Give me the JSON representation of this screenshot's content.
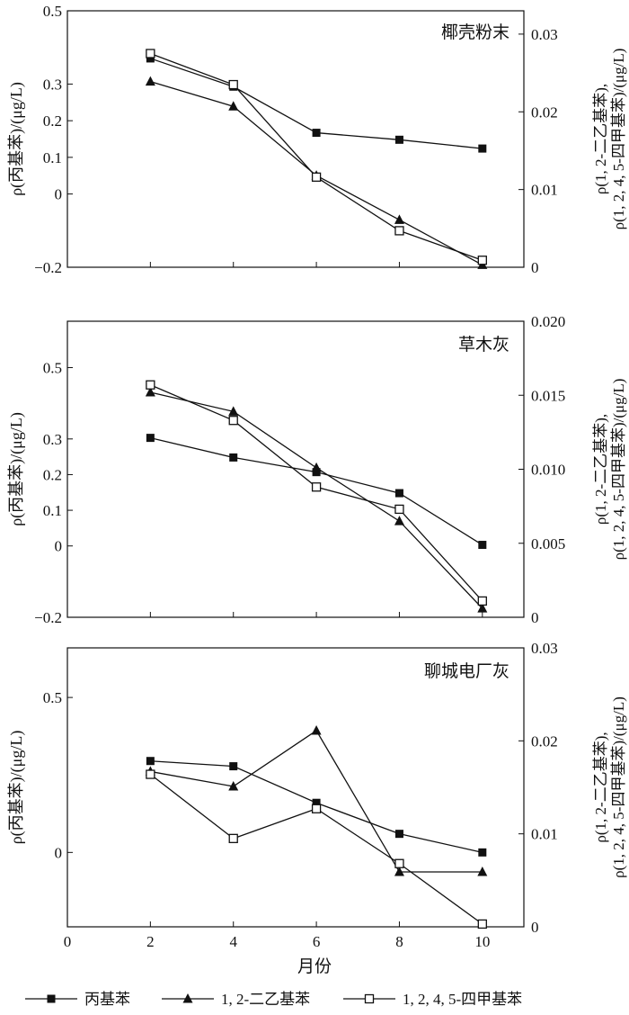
{
  "x_axis": {
    "label": "月份",
    "ticks": [
      0,
      2,
      4,
      6,
      8,
      10
    ],
    "xlim": [
      0,
      11
    ]
  },
  "legend": {
    "position": "bottom",
    "items": [
      {
        "name": "丙基苯",
        "marker": "filled-square"
      },
      {
        "name": "1, 2-二乙基苯",
        "marker": "filled-triangle"
      },
      {
        "name": "1, 2, 4, 5-四甲基苯",
        "marker": "open-square"
      }
    ]
  },
  "chart_data": [
    {
      "type": "line",
      "title": "椰壳粉末",
      "x": [
        2,
        4,
        6,
        8,
        10
      ],
      "ylabel_left": "ρ(丙基苯)/(μg/L)",
      "ylabel_right": [
        "ρ(1, 2-二乙基苯),",
        "ρ(1, 2, 4, 5-四甲基苯)/(μg/L)"
      ],
      "ylim_left": [
        -0.2,
        0.5
      ],
      "yticks_left": [
        -0.2,
        0,
        0.1,
        0.2,
        0.3,
        0.5
      ],
      "yticklabels_left": [
        "−0.2",
        "0",
        "0.1",
        "0.2",
        "0.3",
        "0.5"
      ],
      "ylim_right": [
        0,
        0.033
      ],
      "yticks_right": [
        0,
        0.01,
        0.02,
        0.03
      ],
      "yticklabels_right": [
        "0",
        "0.01",
        "0.02",
        "0.03"
      ],
      "series": [
        {
          "name": "丙基苯",
          "axis": "left",
          "marker": "filled-square",
          "values": [
            0.37,
            0.293,
            0.167,
            0.148,
            0.124
          ]
        },
        {
          "name": "1, 2-二乙基苯",
          "axis": "right",
          "marker": "filled-triangle",
          "values": [
            0.0239,
            0.0207,
            0.0118,
            0.0061,
            0.0003
          ]
        },
        {
          "name": "1, 2, 4, 5-四甲基苯",
          "axis": "right",
          "marker": "open-square",
          "values": [
            0.0275,
            0.0235,
            0.0116,
            0.0047,
            0.0009
          ]
        }
      ]
    },
    {
      "type": "line",
      "title": "草木灰",
      "x": [
        2,
        4,
        6,
        8,
        10
      ],
      "ylabel_left": "ρ(丙基苯)/(μg/L)",
      "ylabel_right": [
        "ρ(1, 2-二乙基苯),",
        "ρ(1, 2, 4, 5-四甲基苯)/(μg/L)"
      ],
      "ylim_left": [
        -0.2,
        0.63
      ],
      "yticks_left": [
        -0.2,
        0,
        0.1,
        0.2,
        0.3,
        0.5
      ],
      "yticklabels_left": [
        "−0.2",
        "0",
        "0.1",
        "0.2",
        "0.3",
        "0.5"
      ],
      "ylim_right": [
        0,
        0.02
      ],
      "yticks_right": [
        0,
        0.005,
        0.01,
        0.015,
        0.02
      ],
      "yticklabels_right": [
        "0",
        "0.005",
        "0.010",
        "0.015",
        "0.020"
      ],
      "series": [
        {
          "name": "丙基苯",
          "axis": "left",
          "marker": "filled-square",
          "values": [
            0.303,
            0.248,
            0.207,
            0.148,
            0.003
          ]
        },
        {
          "name": "1, 2-二乙基苯",
          "axis": "right",
          "marker": "filled-triangle",
          "values": [
            0.0152,
            0.0139,
            0.0101,
            0.0065,
            0.0006
          ]
        },
        {
          "name": "1, 2, 4, 5-四甲基苯",
          "axis": "right",
          "marker": "open-square",
          "values": [
            0.0157,
            0.0133,
            0.0088,
            0.0073,
            0.0011
          ]
        }
      ]
    },
    {
      "type": "line",
      "title": "聊城电厂灰",
      "x": [
        2,
        4,
        6,
        8,
        10
      ],
      "ylabel_left": "ρ(丙基苯)/(μg/L)",
      "ylabel_right": [
        "ρ(1, 2-二乙基苯),",
        "ρ(1, 2, 4, 5-四甲基苯)/(μg/L)"
      ],
      "ylim_left": [
        -0.24,
        0.66
      ],
      "yticks_left": [
        0,
        0.5
      ],
      "yticklabels_left": [
        "0",
        "0.5"
      ],
      "ylim_right": [
        0,
        0.03
      ],
      "yticks_right": [
        0,
        0.01,
        0.02,
        0.03
      ],
      "yticklabels_right": [
        "0",
        "0.01",
        "0.02",
        "0.03"
      ],
      "series": [
        {
          "name": "丙基苯",
          "axis": "left",
          "marker": "filled-square",
          "values": [
            0.295,
            0.278,
            0.16,
            0.06,
            0.0
          ]
        },
        {
          "name": "1, 2-二乙基苯",
          "axis": "right",
          "marker": "filled-triangle",
          "values": [
            0.0167,
            0.0151,
            0.0211,
            0.0059,
            0.0059
          ]
        },
        {
          "name": "1, 2, 4, 5-四甲基苯",
          "axis": "right",
          "marker": "open-square",
          "values": [
            0.0164,
            0.0095,
            0.0127,
            0.0068,
            0.0003
          ]
        }
      ]
    }
  ]
}
